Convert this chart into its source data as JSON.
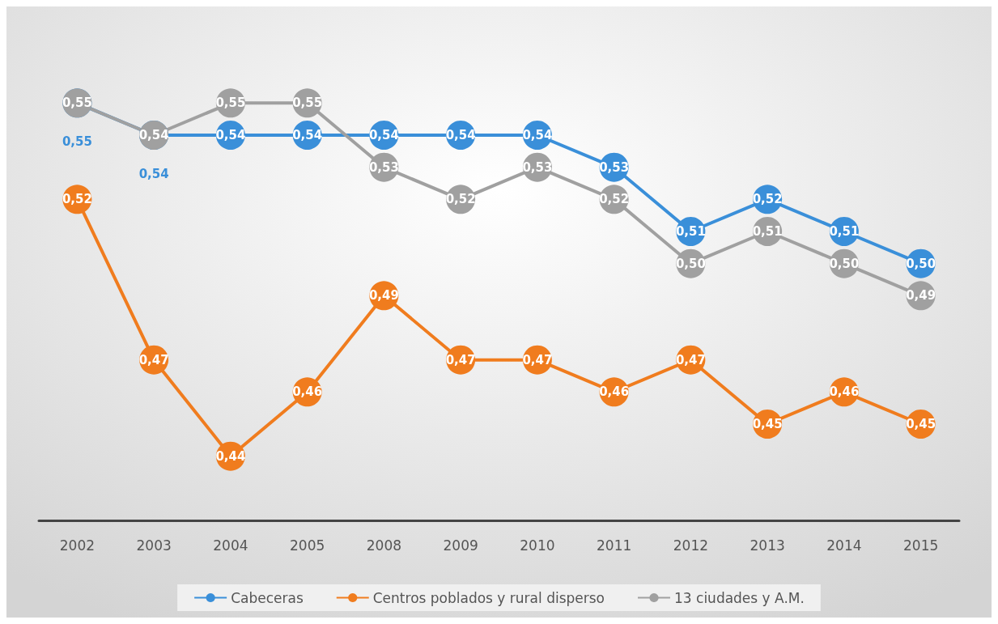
{
  "chart_data": {
    "type": "line",
    "categories": [
      "2002",
      "2003",
      "2004",
      "2005",
      "2008",
      "2009",
      "2010",
      "2011",
      "2012",
      "2013",
      "2014",
      "2015"
    ],
    "series": [
      {
        "name": "Cabeceras",
        "color": "#3a8fd9",
        "values": [
          0.55,
          0.54,
          0.54,
          0.54,
          0.54,
          0.54,
          0.54,
          0.53,
          0.51,
          0.52,
          0.51,
          0.5
        ],
        "value_labels": [
          "0,55",
          "0,54",
          "0,54",
          "0,54",
          "0,54",
          "0,54",
          "0,54",
          "0,53",
          "0,51",
          "0,52",
          "0,51",
          "0,50"
        ]
      },
      {
        "name": "Centros poblados y rural disperso",
        "color": "#f07c1e",
        "values": [
          0.52,
          0.47,
          0.44,
          0.46,
          0.49,
          0.47,
          0.47,
          0.46,
          0.47,
          0.45,
          0.46,
          0.45
        ],
        "value_labels": [
          "0,52",
          "0,47",
          "0,44",
          "0,46",
          "0,49",
          "0,47",
          "0,47",
          "0,46",
          "0,47",
          "0,45",
          "0,46",
          "0,45"
        ]
      },
      {
        "name": "13 ciudades y A.M.",
        "color": "#a0a0a0",
        "values": [
          0.55,
          0.54,
          0.55,
          0.55,
          0.53,
          0.52,
          0.53,
          0.52,
          0.5,
          0.51,
          0.5,
          0.49
        ],
        "value_labels": [
          "0,55",
          "0,54",
          "0,55",
          "0,55",
          "0,53",
          "0,52",
          "0,53",
          "0,52",
          "0,50",
          "0,51",
          "0,50",
          "0,49"
        ]
      }
    ],
    "marker": "circle",
    "legend": "bottom",
    "grid": false
  }
}
